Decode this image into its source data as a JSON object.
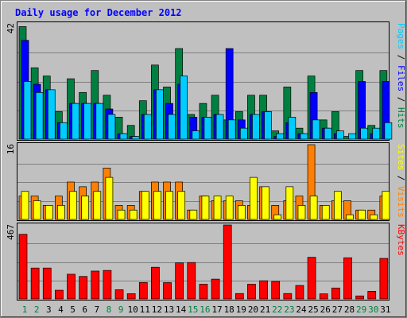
{
  "chart_data": {
    "type": "bar",
    "title": "Daily usage for December 2012",
    "categories": [
      "1",
      "2",
      "3",
      "4",
      "5",
      "6",
      "7",
      "8",
      "9",
      "10",
      "11",
      "12",
      "13",
      "14",
      "15",
      "16",
      "17",
      "18",
      "19",
      "20",
      "21",
      "22",
      "23",
      "24",
      "25",
      "26",
      "27",
      "28",
      "29",
      "30",
      "31"
    ],
    "weekend_days": [
      "1",
      "2",
      "8",
      "9",
      "15",
      "16",
      "22",
      "23",
      "29",
      "30"
    ],
    "panels": [
      {
        "id": "hits",
        "ymax": 42,
        "ymax_label": "42",
        "axis_label_parts": [
          {
            "text": "Pages",
            "color": "#00ccff"
          },
          {
            "text": " / ",
            "color": "#000000"
          },
          {
            "text": "Files",
            "color": "#0000ff"
          },
          {
            "text": " / ",
            "color": "#000000"
          },
          {
            "text": "Hits",
            "color": "#008040"
          }
        ],
        "series": [
          {
            "name": "Hits",
            "color": "#008040",
            "values": [
              41,
              26,
              23,
              10,
              22,
              17,
              25,
              16,
              8,
              5,
              14,
              27,
              19,
              33,
              9,
              13,
              16,
              7,
              10,
              16,
              16,
              3,
              19,
              4,
              23,
              7,
              10,
              1,
              25,
              5,
              25
            ]
          },
          {
            "name": "Files",
            "color": "#0000ff",
            "values": [
              36,
              20,
              18,
              6,
              13,
              13,
              13,
              11,
              2,
              1,
              9,
              18,
              13,
              20,
              8,
              8,
              9,
              33,
              7,
              9,
              10,
              1,
              6,
              2,
              17,
              4,
              2,
              0,
              21,
              2,
              21
            ]
          },
          {
            "name": "Pages",
            "color": "#00ccff",
            "values": [
              21,
              17,
              18,
              6,
              13,
              13,
              13,
              9,
              2,
              1,
              9,
              18,
              9,
              23,
              3,
              8,
              9,
              7,
              4,
              9,
              10,
              2,
              8,
              2,
              7,
              4,
              3,
              2,
              4,
              4,
              6
            ]
          }
        ]
      },
      {
        "id": "visits",
        "ymax": 16,
        "ymax_label": "16",
        "axis_label_parts": [
          {
            "text": "Sites",
            "color": "#ffff00"
          },
          {
            "text": " / ",
            "color": "#000000"
          },
          {
            "text": "Visits",
            "color": "#ff8000"
          }
        ],
        "series": [
          {
            "name": "Visits",
            "color": "#ff8000",
            "values": [
              5,
              5,
              3,
              5,
              8,
              7,
              8,
              11,
              3,
              3,
              6,
              8,
              8,
              8,
              2,
              5,
              4,
              4,
              4,
              3,
              7,
              3,
              4,
              5,
              16,
              3,
              4,
              4,
              2,
              2,
              5
            ]
          },
          {
            "name": "Sites",
            "color": "#ffff00",
            "values": [
              6,
              4,
              3,
              3,
              6,
              5,
              6,
              9,
              2,
              2,
              6,
              6,
              6,
              6,
              2,
              5,
              5,
              5,
              3,
              9,
              7,
              1,
              7,
              3,
              5,
              3,
              6,
              1,
              2,
              1,
              6
            ]
          }
        ]
      },
      {
        "id": "kbytes",
        "ymax": 467,
        "ymax_label": "467",
        "axis_label_parts": [
          {
            "text": "KBytes",
            "color": "#ff0000"
          }
        ],
        "series": [
          {
            "name": "KBytes",
            "color": "#ff0000",
            "values": [
              408,
              195,
              195,
              55,
              156,
              142,
              176,
              180,
              58,
              33,
              104,
              200,
              103,
              228,
              230,
              93,
              125,
              467,
              34,
              93,
              115,
              111,
              34,
              85,
              263,
              32,
              69,
              260,
              19,
              48,
              256
            ]
          }
        ]
      }
    ]
  }
}
